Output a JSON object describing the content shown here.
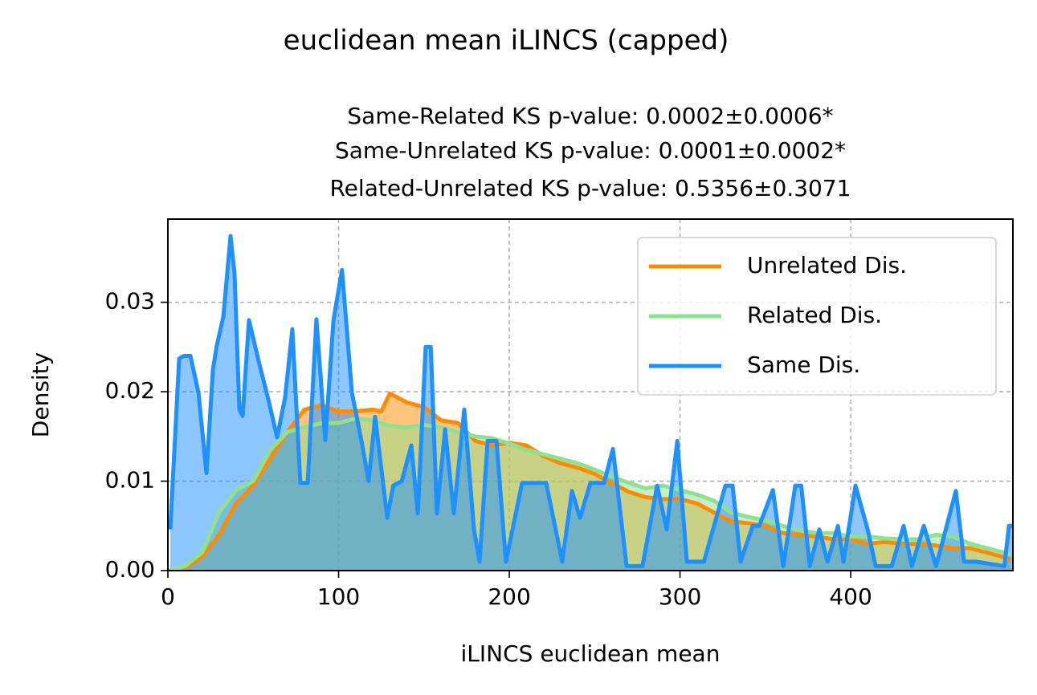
{
  "chart_data": {
    "type": "line",
    "title": "euclidean mean iLINCS (capped)",
    "subtitle": [
      "Same-Related KS p-value: 0.0002±0.0006*",
      "Same-Unrelated KS p-value: 0.0001±0.0002*",
      "Related-Unrelated KS p-value: 0.5356±0.3071"
    ],
    "x_label": "iLINCS euclidean mean",
    "y_label": "Density",
    "xlim": [
      0,
      495
    ],
    "ylim": [
      0,
      0.0393
    ],
    "xticks": [
      0,
      100,
      200,
      300,
      400
    ],
    "yticks": [
      {
        "value": 0,
        "label": "0.00"
      },
      0.01,
      0.02,
      0.03
    ],
    "grid": true,
    "legend": "upper right",
    "filled": true,
    "series": [
      {
        "name": "Unrelated Dis.",
        "color": "#ff8c00",
        "x": [
          0,
          10,
          20,
          30,
          40,
          50,
          60,
          70,
          80,
          90,
          100,
          110,
          120,
          125,
          130,
          140,
          150,
          160,
          170,
          180,
          190,
          200,
          210,
          220,
          230,
          240,
          250,
          260,
          270,
          280,
          290,
          300,
          310,
          320,
          330,
          340,
          350,
          360,
          370,
          380,
          390,
          400,
          410,
          420,
          430,
          440,
          450,
          460,
          470,
          480,
          490,
          494
        ],
        "values": [
          0,
          0.0003,
          0.0015,
          0.004,
          0.0075,
          0.0095,
          0.0125,
          0.0155,
          0.018,
          0.0185,
          0.0178,
          0.0178,
          0.018,
          0.0178,
          0.0198,
          0.0188,
          0.0183,
          0.0168,
          0.0165,
          0.0145,
          0.014,
          0.0143,
          0.014,
          0.0128,
          0.012,
          0.0115,
          0.0108,
          0.0098,
          0.0088,
          0.0082,
          0.008,
          0.008,
          0.0075,
          0.0065,
          0.0055,
          0.0053,
          0.005,
          0.0042,
          0.004,
          0.0038,
          0.0035,
          0.0035,
          0.003,
          0.0032,
          0.003,
          0.003,
          0.0028,
          0.0025,
          0.0025,
          0.002,
          0.0015,
          0.0012
        ]
      },
      {
        "name": "Related Dis.",
        "color": "#90e090",
        "x": [
          0,
          10,
          20,
          30,
          40,
          50,
          60,
          70,
          80,
          90,
          100,
          110,
          120,
          130,
          140,
          150,
          160,
          170,
          180,
          190,
          200,
          210,
          220,
          230,
          240,
          250,
          260,
          270,
          280,
          290,
          300,
          310,
          320,
          330,
          340,
          350,
          360,
          370,
          380,
          390,
          400,
          410,
          420,
          430,
          440,
          450,
          460,
          470,
          480,
          490,
          494
        ],
        "values": [
          0,
          0.0005,
          0.002,
          0.0065,
          0.009,
          0.01,
          0.0135,
          0.0155,
          0.016,
          0.0165,
          0.0165,
          0.017,
          0.0168,
          0.0162,
          0.016,
          0.0163,
          0.016,
          0.0155,
          0.015,
          0.0148,
          0.0142,
          0.0135,
          0.013,
          0.0125,
          0.012,
          0.0113,
          0.0105,
          0.0098,
          0.0092,
          0.0095,
          0.009,
          0.0085,
          0.0078,
          0.0065,
          0.006,
          0.0056,
          0.005,
          0.0045,
          0.0042,
          0.0042,
          0.0038,
          0.0038,
          0.0036,
          0.0035,
          0.0035,
          0.004,
          0.0038,
          0.003,
          0.0025,
          0.002,
          0.0018
        ]
      },
      {
        "name": "Same Dis.",
        "color": "#1e90ff",
        "x": [
          1.4,
          6.6,
          9.4,
          13.2,
          17.9,
          22.6,
          26.4,
          28.7,
          32.5,
          36.7,
          39,
          41.9,
          43.8,
          47.5,
          53.2,
          59,
          64,
          68.7,
          72.9,
          77.6,
          81.9,
          87,
          92.2,
          97,
          102,
          107.8,
          113.4,
          117.6,
          121.4,
          128.5,
          132,
          137,
          142.6,
          146.4,
          151,
          154,
          157.6,
          162.4,
          167.5,
          173.6,
          179.3,
          182.6,
          187.3,
          192.5,
          198,
          207.5,
          221.6,
          231,
          236.7,
          241.4,
          247.5,
          255.5,
          260.7,
          268.7,
          278,
          286.6,
          292.2,
          298.4,
          304,
          314,
          326.6,
          330.8,
          335.5,
          342.6,
          346.4,
          354.4,
          360.5,
          367.5,
          371,
          376,
          381.6,
          386.4,
          392.5,
          395.8,
          402.8,
          409.9,
          414.6,
          424,
          431,
          435.8,
          442.8,
          450,
          461.6,
          466.4,
          473.4,
          490,
          492.7,
          495
        ],
        "values": [
          0.0046,
          0.0237,
          0.024,
          0.024,
          0.0199,
          0.0109,
          0.0225,
          0.0252,
          0.0284,
          0.0374,
          0.0333,
          0.018,
          0.0173,
          0.028,
          0.0234,
          0.019,
          0.0149,
          0.0194,
          0.027,
          0.0098,
          0.0098,
          0.0281,
          0.0146,
          0.028,
          0.0336,
          0.0199,
          0.0145,
          0.01,
          0.0172,
          0.0059,
          0.0095,
          0.01,
          0.014,
          0.0064,
          0.025,
          0.025,
          0.0064,
          0.0158,
          0.0064,
          0.018,
          0.0046,
          0.001,
          0.0145,
          0.0145,
          0.001,
          0.0098,
          0.0098,
          0.001,
          0.0089,
          0.0059,
          0.0098,
          0.0098,
          0.0136,
          0.0005,
          0.0005,
          0.0095,
          0.0046,
          0.0145,
          0.001,
          0.001,
          0.0095,
          0.0095,
          0.001,
          0.005,
          0.005,
          0.009,
          0.0005,
          0.0095,
          0.0095,
          0.0005,
          0.0046,
          0.001,
          0.005,
          0.001,
          0.0095,
          0.0046,
          0.0005,
          0.0005,
          0.005,
          0.0005,
          0.005,
          0.0005,
          0.0089,
          0.001,
          0.001,
          0.0005,
          0.005,
          0.005
        ]
      }
    ]
  }
}
